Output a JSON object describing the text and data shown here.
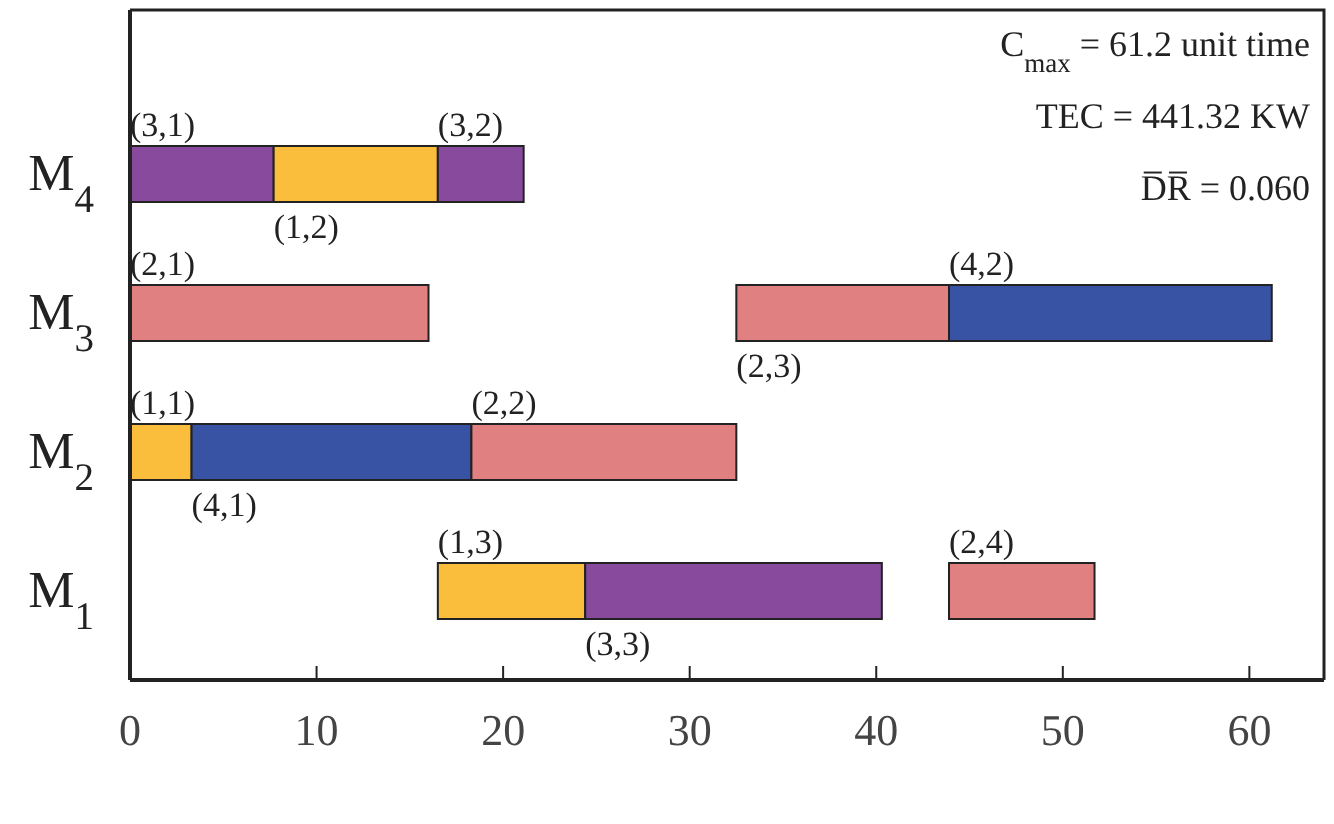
{
  "chart_data": {
    "type": "bar",
    "orientation": "horizontal",
    "categories": [
      "M$_{4}$",
      "M$_{3}$",
      "M$_{2}$",
      "M$_{1}$"
    ],
    "xlim": [
      0,
      64
    ],
    "xticks": [
      0,
      10,
      20,
      30,
      40,
      50,
      60
    ],
    "annotations": [
      "C$_{max}$ = 61.2 unit time",
      "TEC = 441.32 KW",
      "D̅R̅ = 0.060",
      {
        "text": "(3,1)",
        "x": 0,
        "y": "M$_{4}$"
      },
      {
        "text": "(1,2)",
        "x": 7.7,
        "y": "M$_{4}$"
      },
      {
        "text": "(3,2)",
        "x": 16.5,
        "y": "M$_{4}$"
      },
      {
        "text": "(2,1)",
        "x": 0,
        "y": "M$_{3}$"
      },
      {
        "text": "(2,3)",
        "x": 32.5,
        "y": "M$_{3}$"
      },
      {
        "text": "(4,2)",
        "x": 43.9,
        "y": "M$_{3}$"
      },
      {
        "text": "(1,1)",
        "x": 0,
        "y": "M$_{2}$"
      },
      {
        "text": "(4,1)",
        "x": 3.3,
        "y": "M$_{2}$"
      },
      {
        "text": "(2,2)",
        "x": 18.3,
        "y": "M$_{2}$"
      },
      {
        "text": "(1,3)",
        "x": 16.5,
        "y": "M$_{1}$"
      },
      {
        "text": "(3,3)",
        "x": 24.4,
        "y": "M$_{1}$"
      },
      {
        "text": "(2,4)",
        "x": 43.9,
        "y": "M$_{1}$"
      }
    ],
    "series": [
      {
        "color": "#874a9c",
        "values": [
          7.7,
          null,
          null,
          null
        ],
        "base": [
          0,
          null,
          null,
          null
        ]
      },
      {
        "color": "#fbbd3c",
        "values": [
          8.8,
          null,
          null,
          null
        ],
        "base": [
          7.7,
          null,
          null,
          null
        ]
      },
      {
        "color": "#874a9c",
        "values": [
          4.6,
          null,
          null,
          null
        ],
        "base": [
          16.5,
          null,
          null,
          null
        ]
      },
      {
        "color": "#e08080",
        "values": [
          null,
          16.0,
          null,
          null
        ],
        "base": [
          null,
          0,
          null,
          null
        ]
      },
      {
        "color": "#e08080",
        "values": [
          null,
          11.4,
          null,
          null
        ],
        "base": [
          null,
          32.5,
          null,
          null
        ]
      },
      {
        "color": "#3853a4",
        "values": [
          null,
          17.3,
          null,
          null
        ],
        "base": [
          null,
          43.9,
          null,
          null
        ]
      },
      {
        "color": "#fbbd3c",
        "values": [
          null,
          null,
          3.3,
          null
        ],
        "base": [
          null,
          null,
          0,
          null
        ]
      },
      {
        "color": "#3853a4",
        "values": [
          null,
          null,
          15.0,
          null
        ],
        "base": [
          null,
          null,
          3.3,
          null
        ]
      },
      {
        "color": "#e08080",
        "values": [
          null,
          null,
          14.2,
          null
        ],
        "base": [
          null,
          null,
          18.3,
          null
        ]
      },
      {
        "color": "#fbbd3c",
        "values": [
          null,
          null,
          null,
          7.9
        ],
        "base": [
          null,
          null,
          null,
          16.5
        ]
      },
      {
        "color": "#874a9c",
        "values": [
          null,
          null,
          null,
          15.9
        ],
        "base": [
          null,
          null,
          null,
          24.4
        ]
      },
      {
        "color": "#e08080",
        "values": [
          null,
          null,
          null,
          7.8
        ],
        "base": [
          null,
          null,
          null,
          43.9
        ]
      }
    ]
  }
}
